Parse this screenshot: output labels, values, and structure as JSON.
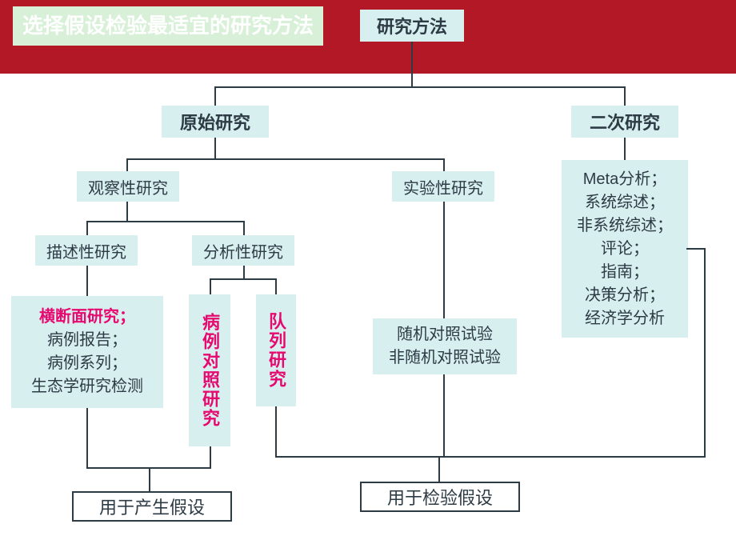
{
  "banner_color": "#b31827",
  "node_bg": "#d8efef",
  "title_bg": "#d7f0d7",
  "edge_color": "#2d3b45",
  "pink_color": "#e6096f",
  "text_color": "#2d3b45",
  "title": "选择假设检验最适宜的研究方法",
  "root": "研究方法",
  "primary": "原始研究",
  "secondary": "二次研究",
  "obs": "观察性研究",
  "exp": "实验性研究",
  "desc_study": "描述性研究",
  "analytic_study": "分析性研究",
  "desc_heading": "横断面研究；",
  "desc_list_1": "病例报告；",
  "desc_list_2": "病例系列；",
  "desc_list_3": "生态学研究检测",
  "case_control": "病例对照研究",
  "cohort": "队列研究",
  "trial_1": "随机对照试验",
  "trial_2": "非随机对照试验",
  "sec_items": [
    "Meta分析；",
    "系统综述；",
    "非系统综述；",
    "评论；",
    "指南；",
    "决策分析；",
    "经济学分析"
  ],
  "hypothesis_gen": "用于产生假设",
  "hypothesis_test": "用于检验假设"
}
